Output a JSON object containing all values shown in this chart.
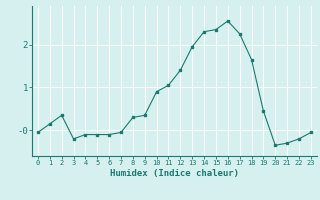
{
  "xlabel": "Humidex (Indice chaleur)",
  "ylabel": "",
  "x": [
    0,
    1,
    2,
    3,
    4,
    5,
    6,
    7,
    8,
    9,
    10,
    11,
    12,
    13,
    14,
    15,
    16,
    17,
    18,
    19,
    20,
    21,
    22,
    23
  ],
  "y": [
    -0.05,
    0.15,
    0.35,
    -0.2,
    -0.1,
    -0.1,
    -0.1,
    -0.05,
    0.3,
    0.35,
    0.9,
    1.05,
    1.4,
    1.95,
    2.3,
    2.35,
    2.55,
    2.25,
    1.65,
    0.45,
    -0.35,
    -0.3,
    -0.2,
    -0.05
  ],
  "line_color": "#1a7a6e",
  "marker_color": "#1a7a6e",
  "bg_color": "#d6f0f0",
  "grid_color": "#ffffff",
  "yticks": [
    0,
    1,
    2
  ],
  "ylim": [
    -0.6,
    2.9
  ],
  "xlim": [
    -0.5,
    23.5
  ],
  "tick_label_color": "#1a7a6e",
  "xlabel_color": "#1a7a6e",
  "axis_color": "#1a7a6e",
  "red_line_y": [
    0,
    1,
    2
  ],
  "red_line_color": "#cc4444"
}
